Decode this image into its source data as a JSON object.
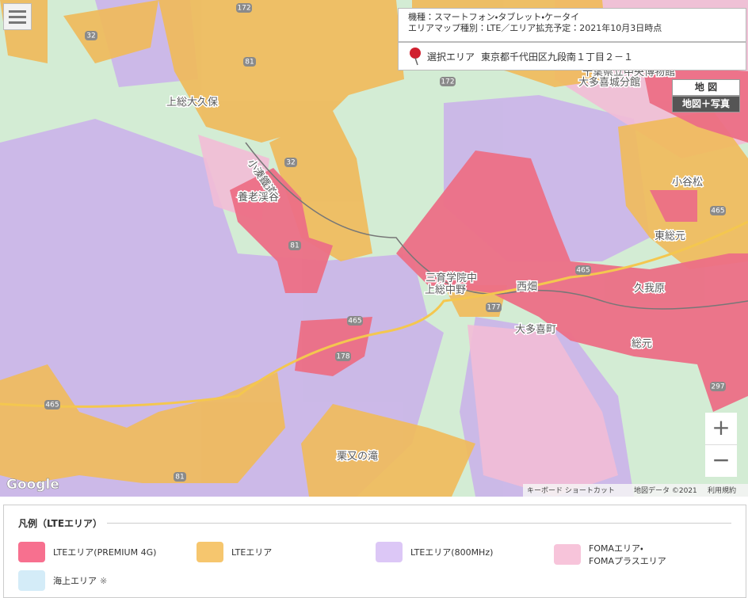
{
  "info": {
    "model": "機種：スマートフォン・タブレット・ケータイ",
    "map_type": "エリアマップ種別：LTE／エリア拡充予定：2021年10月3日時点",
    "selected_label": "選択エリア",
    "selected_address": "東京都千代田区九段南１丁目２－１"
  },
  "map_controls": {
    "map": "地 図",
    "map_photo": "地図＋写真",
    "zoom_in": "+",
    "zoom_out": "−"
  },
  "places": [
    "千葉県立中央博物館",
    "大多喜城分館",
    "上総大久保",
    "小湊鐵道",
    "養老渓谷",
    "三育学院中",
    "上総中野",
    "西畑",
    "大多喜町",
    "久我原",
    "総元",
    "東総元",
    "小谷松",
    "栗又の滝"
  ],
  "routes": [
    "172",
    "32",
    "81",
    "172",
    "32",
    "81",
    "465",
    "178",
    "177",
    "465",
    "465",
    "297",
    "465",
    "81"
  ],
  "attribution": {
    "logo": "Google",
    "keyboard": "キーボード ショートカット",
    "map_data": "地図データ ©2021",
    "terms": "利用規約"
  },
  "legend": {
    "title": "凡例（LTEエリア）",
    "items": [
      {
        "lines": [
          "LTEエリア(PREMIUM 4G)"
        ]
      },
      {
        "lines": [
          "LTEエリア"
        ]
      },
      {
        "lines": [
          "LTEエリア(800MHz)"
        ]
      },
      {
        "lines": [
          "FOMAエリア・",
          "FOMAプラスエリア"
        ]
      },
      {
        "lines": [
          "海上エリア"
        ],
        "note": "※"
      }
    ]
  }
}
